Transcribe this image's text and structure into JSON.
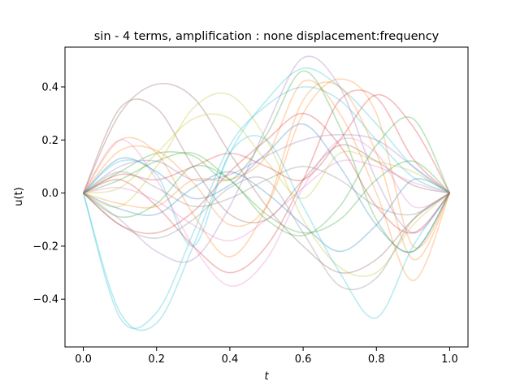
{
  "chart_data": {
    "type": "line",
    "title": "sin - 4 terms, amplification : none displacement:frequency",
    "xlabel": "t",
    "ylabel": "u(t)",
    "xlim": [
      -0.05,
      1.05
    ],
    "ylim": [
      -0.58,
      0.55
    ],
    "xticks": [
      0.0,
      0.2,
      0.4,
      0.6,
      0.8,
      1.0
    ],
    "xtick_labels": [
      "0.0",
      "0.2",
      "0.4",
      "0.6",
      "0.8",
      "1.0"
    ],
    "yticks": [
      -0.4,
      -0.2,
      0.0,
      0.2,
      0.4
    ],
    "ytick_labels": [
      "−0.4",
      "−0.2",
      "0.0",
      "0.2",
      "0.4"
    ],
    "grid": false,
    "legend": "none",
    "line_alpha": 0.3,
    "line_width": 1.6,
    "series": [
      {
        "color": "#17becf",
        "x": [
          0,
          0.1,
          0.2,
          0.3,
          0.4,
          0.5,
          0.6,
          0.7,
          0.8,
          0.9,
          1.0
        ],
        "y": [
          0,
          -0.45,
          -0.49,
          -0.2,
          0.15,
          0.35,
          0.47,
          0.4,
          0.26,
          0.1,
          0
        ]
      },
      {
        "color": "#17becf",
        "x": [
          0,
          0.1,
          0.2,
          0.3,
          0.4,
          0.5,
          0.6,
          0.7,
          0.8,
          0.9,
          1.0
        ],
        "y": [
          0,
          -0.47,
          -0.45,
          -0.15,
          0.18,
          0.33,
          0.4,
          0.35,
          0.2,
          0.06,
          0
        ]
      },
      {
        "color": "#8c564b",
        "x": [
          0,
          0.1,
          0.2,
          0.3,
          0.4,
          0.5,
          0.6,
          0.7,
          0.8,
          0.9,
          1.0
        ],
        "y": [
          0,
          0.32,
          0.32,
          0.1,
          -0.08,
          -0.1,
          0.05,
          0.18,
          0.12,
          0.03,
          0
        ]
      },
      {
        "color": "#8c564b",
        "x": [
          0,
          0.1,
          0.2,
          0.3,
          0.4,
          0.5,
          0.6,
          0.7,
          0.8,
          0.9,
          1.0
        ],
        "y": [
          0,
          0.3,
          0.41,
          0.36,
          0.15,
          -0.05,
          -0.2,
          -0.3,
          -0.25,
          -0.1,
          0
        ]
      },
      {
        "color": "#9467bd",
        "x": [
          0,
          0.1,
          0.2,
          0.3,
          0.4,
          0.5,
          0.6,
          0.7,
          0.8,
          0.9,
          1.0
        ],
        "y": [
          0,
          -0.1,
          -0.22,
          -0.25,
          -0.05,
          0.25,
          0.51,
          0.4,
          0.05,
          -0.15,
          0
        ]
      },
      {
        "color": "#ff7f0e",
        "x": [
          0,
          0.1,
          0.2,
          0.3,
          0.4,
          0.5,
          0.6,
          0.7,
          0.8,
          0.9,
          1.0
        ],
        "y": [
          0,
          0.2,
          0.15,
          -0.08,
          -0.24,
          -0.05,
          0.35,
          0.4,
          0.15,
          -0.25,
          0
        ]
      },
      {
        "color": "#ff7f0e",
        "x": [
          0,
          0.1,
          0.2,
          0.3,
          0.4,
          0.5,
          0.6,
          0.7,
          0.8,
          0.9,
          1.0
        ],
        "y": [
          0,
          0.16,
          0.16,
          0.04,
          -0.12,
          -0.05,
          0.3,
          0.43,
          0.3,
          -0.2,
          0
        ]
      },
      {
        "color": "#d62728",
        "x": [
          0,
          0.1,
          0.2,
          0.3,
          0.4,
          0.5,
          0.6,
          0.7,
          0.8,
          0.9,
          1.0
        ],
        "y": [
          0,
          0.07,
          0.05,
          0.1,
          0.15,
          0.1,
          0.05,
          0.2,
          0.37,
          0.25,
          0
        ]
      },
      {
        "color": "#d62728",
        "x": [
          0,
          0.1,
          0.2,
          0.3,
          0.4,
          0.5,
          0.6,
          0.7,
          0.8,
          0.9,
          1.0
        ],
        "y": [
          0,
          0.05,
          -0.05,
          -0.2,
          -0.3,
          -0.2,
          0.05,
          0.35,
          0.36,
          0.13,
          0
        ]
      },
      {
        "color": "#e377c2",
        "x": [
          0,
          0.1,
          0.2,
          0.3,
          0.4,
          0.5,
          0.6,
          0.7,
          0.8,
          0.9,
          1.0
        ],
        "y": [
          0,
          0.2,
          0.05,
          -0.2,
          -0.35,
          -0.25,
          0.02,
          0.2,
          0.15,
          -0.05,
          0
        ]
      },
      {
        "color": "#2ca02c",
        "x": [
          0,
          0.1,
          0.2,
          0.3,
          0.4,
          0.5,
          0.6,
          0.7,
          0.8,
          0.9,
          1.0
        ],
        "y": [
          0,
          -0.09,
          -0.04,
          0.1,
          0.05,
          -0.1,
          -0.16,
          -0.05,
          0.18,
          0.28,
          0
        ]
      },
      {
        "color": "#2ca02c",
        "x": [
          0,
          0.1,
          0.2,
          0.3,
          0.4,
          0.5,
          0.6,
          0.7,
          0.8,
          0.9,
          1.0
        ],
        "y": [
          0,
          0.08,
          0.15,
          0.14,
          0.05,
          0.22,
          0.46,
          0.25,
          -0.1,
          -0.22,
          0
        ]
      },
      {
        "color": "#bcbd22",
        "x": [
          0,
          0.1,
          0.2,
          0.3,
          0.4,
          0.5,
          0.6,
          0.7,
          0.8,
          0.9,
          1.0
        ],
        "y": [
          0,
          -0.05,
          0.1,
          0.32,
          0.37,
          0.2,
          -0.1,
          -0.28,
          -0.3,
          -0.12,
          0
        ]
      },
      {
        "color": "#bcbd22",
        "x": [
          0,
          0.1,
          0.2,
          0.3,
          0.4,
          0.5,
          0.6,
          0.7,
          0.8,
          0.9,
          1.0
        ],
        "y": [
          0,
          0.02,
          0.15,
          0.28,
          0.28,
          0.12,
          -0.02,
          0.15,
          0.12,
          0.08,
          0
        ]
      },
      {
        "color": "#1f77b4",
        "x": [
          0,
          0.1,
          0.2,
          0.3,
          0.4,
          0.5,
          0.6,
          0.7,
          0.8,
          0.9,
          1.0
        ],
        "y": [
          0,
          0.13,
          0.08,
          -0.02,
          0.03,
          0.15,
          0.26,
          0.1,
          -0.12,
          -0.22,
          0
        ]
      },
      {
        "color": "#1f77b4",
        "x": [
          0,
          0.1,
          0.2,
          0.3,
          0.4,
          0.5,
          0.6,
          0.7,
          0.8,
          0.9,
          1.0
        ],
        "y": [
          0,
          -0.06,
          -0.08,
          0.02,
          0.08,
          0.0,
          -0.12,
          -0.22,
          -0.12,
          0.05,
          0
        ]
      },
      {
        "color": "#7f7f7f",
        "x": [
          0,
          0.1,
          0.2,
          0.3,
          0.4,
          0.5,
          0.6,
          0.7,
          0.8,
          0.9,
          1.0
        ],
        "y": [
          0,
          -0.12,
          -0.17,
          -0.1,
          0.02,
          0.05,
          -0.15,
          -0.35,
          -0.32,
          -0.1,
          0
        ]
      },
      {
        "color": "#17becf",
        "x": [
          0,
          0.1,
          0.2,
          0.3,
          0.4,
          0.5,
          0.6,
          0.7,
          0.8,
          0.9,
          1.0
        ],
        "y": [
          0,
          0.12,
          0.07,
          -0.2,
          0.15,
          0.2,
          -0.05,
          -0.3,
          -0.47,
          -0.2,
          0
        ]
      },
      {
        "color": "#ff7f0e",
        "x": [
          0,
          0.1,
          0.2,
          0.3,
          0.4,
          0.5,
          0.6,
          0.7,
          0.8,
          0.9,
          1.0
        ],
        "y": [
          0,
          -0.04,
          -0.05,
          0.05,
          0.05,
          0.14,
          0.42,
          0.3,
          0.0,
          -0.33,
          0
        ]
      },
      {
        "color": "#9467bd",
        "x": [
          0,
          0.1,
          0.2,
          0.3,
          0.4,
          0.5,
          0.6,
          0.7,
          0.8,
          0.9,
          1.0
        ],
        "y": [
          0,
          0.1,
          0.12,
          0.05,
          0.07,
          0.14,
          0.2,
          0.22,
          0.2,
          0.1,
          0
        ]
      },
      {
        "color": "#d62728",
        "x": [
          0,
          0.1,
          0.2,
          0.3,
          0.4,
          0.5,
          0.6,
          0.7,
          0.8,
          0.9,
          1.0
        ],
        "y": [
          0,
          -0.12,
          -0.15,
          -0.07,
          0.08,
          0.2,
          0.3,
          0.18,
          -0.05,
          -0.15,
          0
        ]
      },
      {
        "color": "#2ca02c",
        "x": [
          0,
          0.1,
          0.2,
          0.3,
          0.4,
          0.5,
          0.6,
          0.7,
          0.8,
          0.9,
          1.0
        ],
        "y": [
          0,
          0.05,
          0.12,
          0.15,
          0.05,
          -0.08,
          -0.15,
          -0.1,
          0.05,
          0.12,
          0
        ]
      },
      {
        "color": "#e377c2",
        "x": [
          0,
          0.1,
          0.2,
          0.3,
          0.4,
          0.5,
          0.6,
          0.7,
          0.8,
          0.9,
          1.0
        ],
        "y": [
          0,
          0.02,
          -0.03,
          -0.12,
          -0.18,
          -0.1,
          0.02,
          0.12,
          0.1,
          0.04,
          0
        ]
      },
      {
        "color": "#7f7f7f",
        "x": [
          0,
          0.1,
          0.2,
          0.3,
          0.4,
          0.5,
          0.6,
          0.7,
          0.8,
          0.9,
          1.0
        ],
        "y": [
          0,
          0.08,
          0.02,
          -0.05,
          -0.02,
          0.05,
          0.1,
          0.05,
          -0.05,
          -0.08,
          0
        ]
      }
    ]
  }
}
